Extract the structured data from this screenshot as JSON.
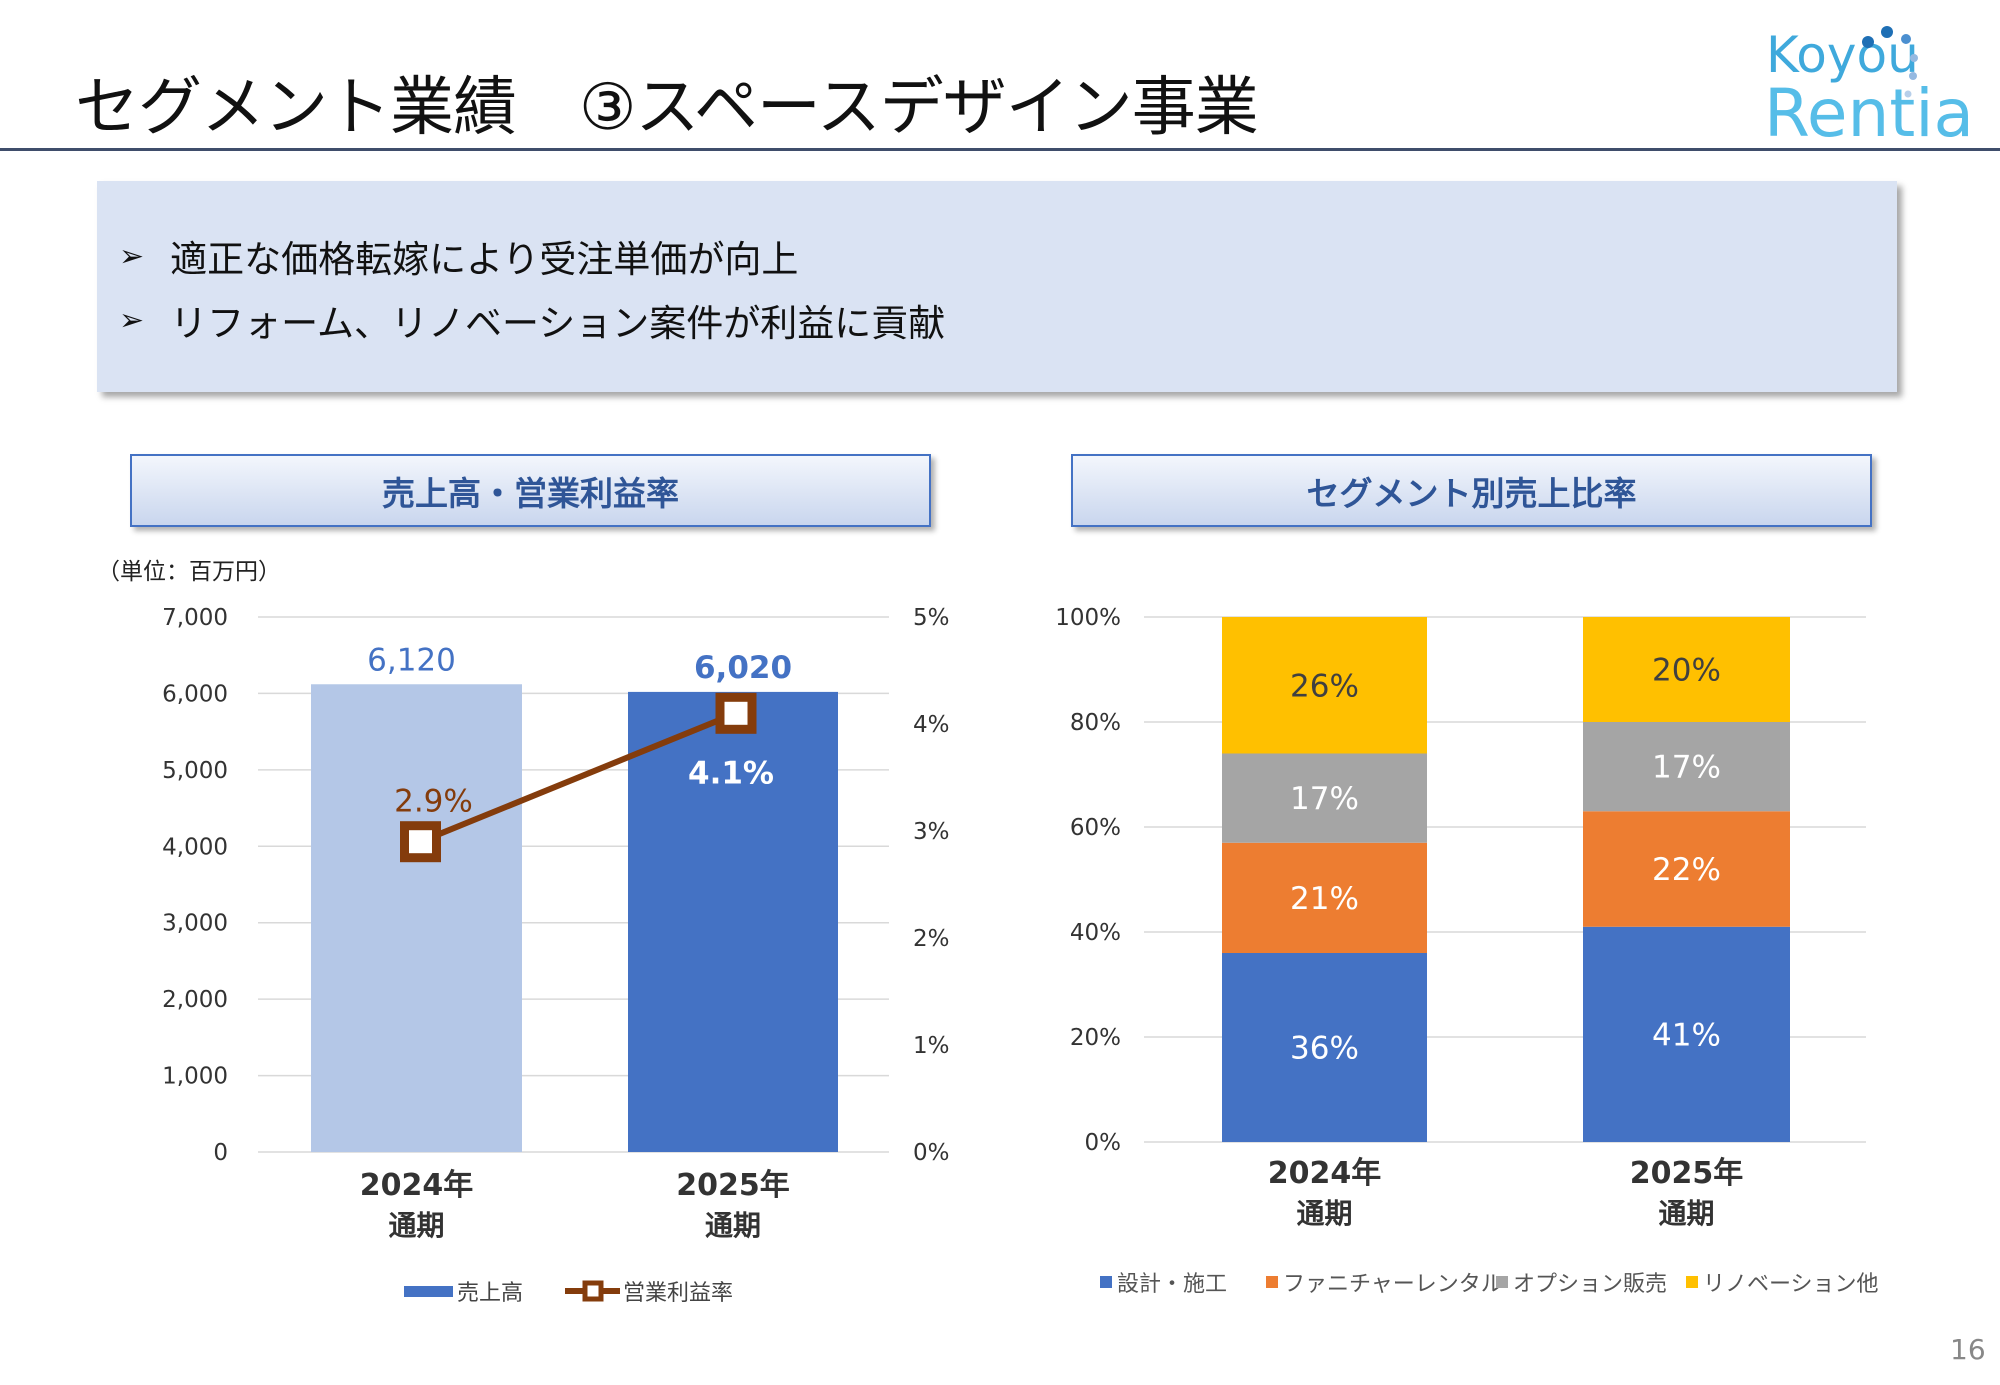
{
  "title": "セグメント業績　③スペースデザイン事業",
  "logo": {
    "line1": "Koyou",
    "line2": "Rentia"
  },
  "bullets": [
    "適正な価格転嫁により受注単価が向上",
    "リフォーム、リノベーション案件が利益に貢献"
  ],
  "bullet_icon": "arrowhead-bullet-icon",
  "page_number": "16",
  "chart_data": [
    {
      "type": "bar+line",
      "title": "売上高・営業利益率",
      "unit_label": "（単位：百万円）",
      "categories": [
        [
          "2024年",
          "通期"
        ],
        [
          "2025年",
          "通期"
        ]
      ],
      "y_left": {
        "range": [
          0,
          7000
        ],
        "ticks": [
          "0",
          "1,000",
          "2,000",
          "3,000",
          "4,000",
          "5,000",
          "6,000",
          "7,000"
        ],
        "tick_values": [
          0,
          1000,
          2000,
          3000,
          4000,
          5000,
          6000,
          7000
        ]
      },
      "y_right": {
        "range": [
          0,
          5
        ],
        "ticks": [
          "0%",
          "1%",
          "2%",
          "3%",
          "4%",
          "5%"
        ],
        "tick_values": [
          0,
          1,
          2,
          3,
          4,
          5
        ]
      },
      "series": [
        {
          "name": "売上高",
          "type": "bar",
          "values": [
            6120,
            6020
          ],
          "labels": [
            "6,120",
            "6,020"
          ],
          "colors": [
            "#b4c7e7",
            "#4472c4"
          ]
        },
        {
          "name": "営業利益率",
          "type": "line",
          "values": [
            2.9,
            4.1
          ],
          "labels": [
            "2.9%",
            "4.1%"
          ],
          "color": "#843c0c"
        }
      ],
      "legend": [
        "売上高",
        "営業利益率"
      ],
      "grid": true
    },
    {
      "type": "stacked-bar",
      "title": "セグメント別売上比率",
      "categories": [
        [
          "2024年",
          "通期"
        ],
        [
          "2025年",
          "通期"
        ]
      ],
      "y": {
        "range": [
          0,
          100
        ],
        "ticks": [
          "0%",
          "20%",
          "40%",
          "60%",
          "80%",
          "100%"
        ],
        "tick_values": [
          0,
          20,
          40,
          60,
          80,
          100
        ]
      },
      "series": [
        {
          "name": "設計・施工",
          "values": [
            36,
            41
          ],
          "labels": [
            "36%",
            "41%"
          ],
          "color": "#4472c4"
        },
        {
          "name": "ファニチャーレンタル",
          "values": [
            21,
            22
          ],
          "labels": [
            "21%",
            "22%"
          ],
          "color": "#ed7d31"
        },
        {
          "name": "オプション販売",
          "values": [
            17,
            17
          ],
          "labels": [
            "17%",
            "17%"
          ],
          "color": "#a5a5a5"
        },
        {
          "name": "リノベーション他",
          "values": [
            26,
            20
          ],
          "labels": [
            "26%",
            "20%"
          ],
          "color": "#ffc000"
        }
      ],
      "legend_position": "bottom",
      "grid": true
    }
  ]
}
